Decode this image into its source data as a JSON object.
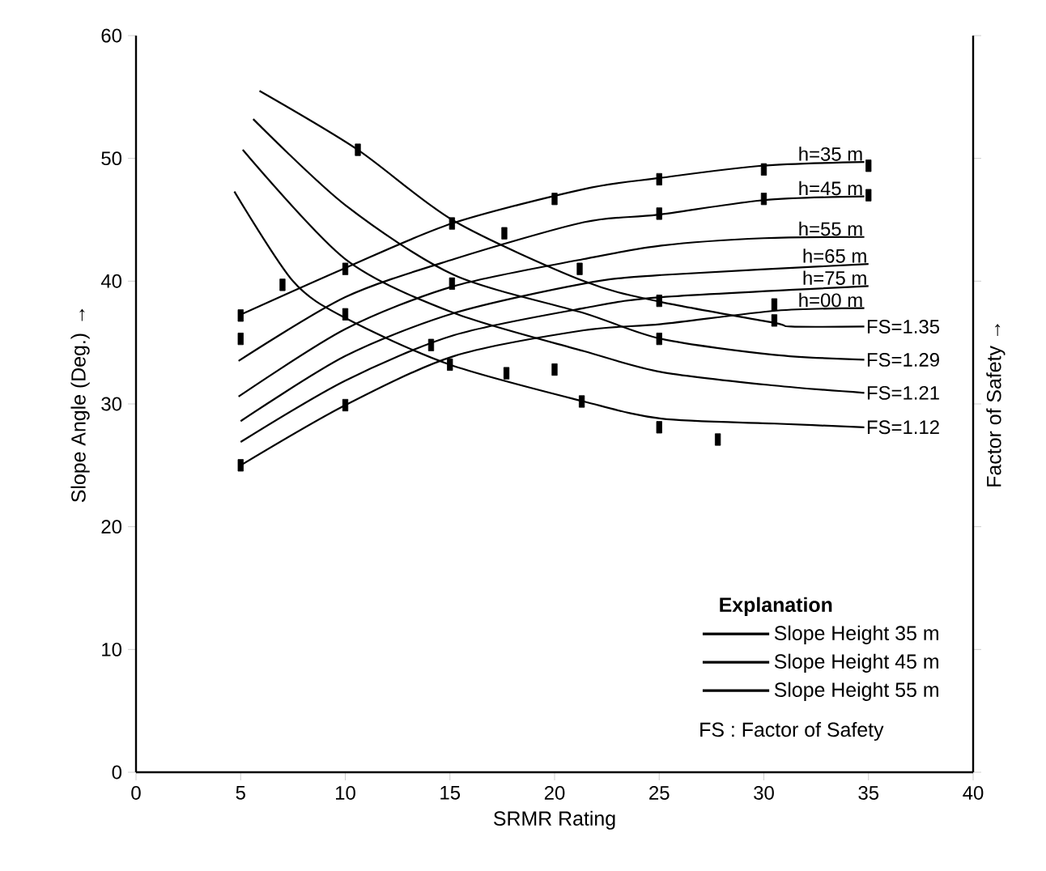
{
  "chart_data": {
    "type": "line",
    "xlabel": "SRMR Rating",
    "ylabel": "Slope Angle (Deg.) →",
    "y2label": "Factor of Safety →",
    "legend_title": "Explanation",
    "annotations": [
      "FS : Factor of Safety"
    ],
    "xlim": [
      0,
      40
    ],
    "ylim": [
      0,
      60
    ],
    "xticks": [
      0,
      5,
      10,
      15,
      20,
      25,
      30,
      35,
      40
    ],
    "yticks": [
      0,
      10,
      20,
      30,
      40,
      50,
      60
    ],
    "legend": "bottom right",
    "series": [
      {
        "name": "h=35 m",
        "color": "#000000",
        "x": [
          4.9,
          9.9,
          15.1,
          21.4,
          25,
          29.9,
          34.8
        ],
        "values": [
          37.2,
          41.0,
          44.7,
          47.5,
          48.4,
          49.4,
          49.7
        ]
      },
      {
        "name": "h=45 m",
        "color": "#000000",
        "x": [
          4.9,
          10,
          15.2,
          21.4,
          24.9,
          30,
          34.8
        ],
        "values": [
          33.5,
          38.7,
          41.8,
          44.8,
          45.4,
          46.6,
          46.9
        ]
      },
      {
        "name": "h=55 m",
        "color": "#000000",
        "x": [
          4.9,
          10,
          15.2,
          21.4,
          25.1,
          30,
          34.8
        ],
        "values": [
          30.6,
          36.1,
          39.6,
          41.8,
          42.9,
          43.5,
          43.6
        ]
      },
      {
        "name": "h=65 m",
        "color": "#000000",
        "x": [
          5,
          10,
          15.2,
          21.4,
          25.1,
          35
        ],
        "values": [
          28.6,
          33.9,
          37.4,
          39.8,
          40.5,
          41.4
        ]
      },
      {
        "name": "h=75 m",
        "color": "#000000",
        "x": [
          5,
          10,
          15.2,
          21.4,
          25.1,
          35
        ],
        "values": [
          26.9,
          31.9,
          35.6,
          37.8,
          38.7,
          39.6
        ]
      },
      {
        "name": "h=00 m",
        "color": "#000000",
        "x": [
          5,
          10,
          15.2,
          21.4,
          25.1,
          30.6,
          34.8
        ],
        "values": [
          25.0,
          29.9,
          33.9,
          36.0,
          36.5,
          37.6,
          37.8
        ]
      },
      {
        "name": "FS=1.35",
        "color": "#000000",
        "x": [
          5.9,
          10.6,
          15.2,
          21.4,
          25.1,
          30.5,
          31.3,
          34.8
        ],
        "values": [
          55.5,
          50.7,
          44.9,
          40.0,
          38.3,
          36.6,
          36.3,
          36.3
        ]
      },
      {
        "name": "FS=1.29",
        "color": "#000000",
        "x": [
          5.6,
          10,
          15.2,
          21.4,
          25.1,
          30.5,
          34.8
        ],
        "values": [
          53.2,
          46.2,
          40.5,
          37.4,
          35.3,
          34.0,
          33.6
        ]
      },
      {
        "name": "FS=1.21",
        "color": "#000000",
        "x": [
          5.1,
          10,
          15.2,
          21.4,
          25.1,
          30.5,
          34.8
        ],
        "values": [
          50.7,
          41.8,
          37.4,
          34.3,
          32.6,
          31.5,
          30.9
        ]
      },
      {
        "name": "FS=1.12",
        "color": "#000000",
        "x": [
          4.7,
          7.5,
          10,
          15,
          21.4,
          25.1,
          30.5,
          34.8
        ],
        "values": [
          47.3,
          40.0,
          37.0,
          33.2,
          30.2,
          28.8,
          28.4,
          28.1
        ]
      },
      {
        "type": "scatter",
        "marker": "square",
        "name": "Slope Height 35 m",
        "color": "#000000",
        "x": [
          5,
          7,
          10,
          15.1,
          20,
          25,
          30,
          35
        ],
        "values": [
          37.2,
          39.7,
          41.0,
          44.7,
          46.7,
          48.3,
          49.1,
          49.4
        ]
      },
      {
        "type": "scatter",
        "marker": "square",
        "name": "Slope Height 45 m",
        "color": "#000000",
        "x": [
          5,
          10,
          15.1,
          17.6,
          25,
          30,
          35
        ],
        "values": [
          35.3,
          37.3,
          39.8,
          43.9,
          45.5,
          46.7,
          47.0
        ]
      },
      {
        "type": "scatter",
        "marker": "square",
        "name": "Slope Height 55 m",
        "color": "#000000",
        "x": [
          5,
          10,
          10.6,
          14.1,
          15,
          17.7,
          20,
          21.2,
          21.3,
          25,
          25,
          25,
          27.8,
          30.5,
          30.5
        ],
        "values": [
          25.0,
          29.9,
          50.7,
          34.8,
          33.2,
          32.5,
          32.8,
          41.0,
          30.2,
          38.4,
          35.3,
          28.1,
          27.1,
          38.1,
          36.8
        ]
      }
    ]
  }
}
